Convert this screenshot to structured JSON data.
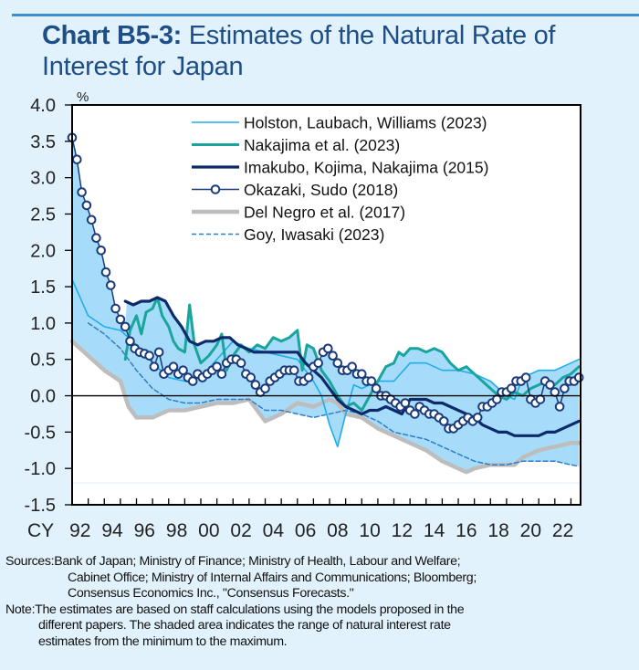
{
  "header": {
    "title_bold": "Chart B5-3:",
    "title_rest": " Estimates of the Natural Rate of Interest for Japan"
  },
  "footer": {
    "sources_label": "Sources: ",
    "sources_line1": "Bank of Japan; Ministry of Finance; Ministry of Health, Labour and Welfare;",
    "sources_line2": "Cabinet Office; Ministry of Internal Affairs and Communications; Bloomberg;",
    "sources_line3": "Consensus Economics Inc., \"Consensus Forecasts.\"",
    "note_label": "Note: ",
    "note_line1": "The estimates are based on staff calculations using the models proposed in the",
    "note_line2": "different papers. The shaded area indicates the range of natural interest rate",
    "note_line3": "estimates from the minimum to the maximum."
  },
  "colors": {
    "hlw": "#20aee8",
    "nakajima": "#1aa59c",
    "imakubo": "#0e2a6b",
    "okazaki": "#1b3a7a",
    "delnegro": "#bdbdbd",
    "goy": "#2f7cc7",
    "band": "#a6dcfa",
    "title": "#1f4e86"
  },
  "chart_data": {
    "type": "line",
    "title": "Chart B5-3: Estimates of the Natural Rate of Interest for Japan",
    "ylabel": "%",
    "xlabel": "",
    "x_prefix": "CY",
    "xlim": [
      1992,
      2023.6
    ],
    "ylim": [
      -1.5,
      4.0
    ],
    "yticks": [
      4.0,
      3.5,
      3.0,
      2.5,
      2.0,
      1.5,
      1.0,
      0.5,
      0.0,
      -0.5,
      -1.0,
      -1.5
    ],
    "ytick_labels": [
      "4.0",
      "3.5",
      "3.0",
      "2.5",
      "2.0",
      "1.5",
      "1.0",
      "0.5",
      "0.0",
      "-0.5",
      "-1.0",
      "-1.5"
    ],
    "xticks": [
      1992,
      1994,
      1996,
      1998,
      2000,
      2002,
      2004,
      2006,
      2008,
      2010,
      2012,
      2014,
      2016,
      2018,
      2020,
      2022
    ],
    "xtick_labels": [
      "92",
      "94",
      "96",
      "98",
      "00",
      "02",
      "04",
      "06",
      "08",
      "10",
      "12",
      "14",
      "16",
      "18",
      "20",
      "22"
    ],
    "legend_position": "top-right",
    "shaded_band": "range of estimates from minimum to maximum",
    "series": [
      {
        "name": "Holston, Laubach, Williams (2023)",
        "key": "hlw",
        "style": "thin",
        "x": [
          1992,
          1993,
          1994,
          1995,
          1996,
          1997,
          1998,
          1999,
          2000,
          2001,
          2002,
          2003,
          2004,
          2005,
          2006,
          2007,
          2007.5,
          2008,
          2008.5,
          2009,
          2009.5,
          2010,
          2010.5,
          2011,
          2012,
          2013,
          2014,
          2015,
          2016,
          2017,
          2018,
          2018.5,
          2019,
          2019.5,
          2020,
          2021,
          2022,
          2023,
          2023.5
        ],
        "y": [
          1.6,
          1.1,
          0.95,
          0.9,
          0.7,
          0.45,
          0.25,
          0.2,
          0.25,
          0.5,
          0.75,
          0.65,
          0.6,
          0.55,
          0.5,
          0.2,
          0.0,
          -0.4,
          -0.7,
          -0.25,
          0.15,
          0.1,
          0.15,
          0.2,
          0.2,
          0.45,
          0.45,
          0.35,
          0.35,
          0.3,
          0.2,
          0.1,
          0.0,
          -0.05,
          0.25,
          0.35,
          0.35,
          0.45,
          0.5
        ]
      },
      {
        "name": "Nakajima et al. (2023)",
        "key": "nakajima",
        "style": "thick-teal",
        "x": [
          1995.3,
          1995.6,
          1996,
          1996.3,
          1996.6,
          1997,
          1997.3,
          1997.6,
          1998,
          1998.3,
          1998.6,
          1999,
          1999.3,
          1999.6,
          2000,
          2000.5,
          2001,
          2001.3,
          2001.6,
          2002,
          2002.5,
          2003,
          2003.5,
          2004,
          2004.5,
          2005,
          2005.5,
          2006,
          2006.3,
          2006.6,
          2007,
          2007.5,
          2008,
          2008.5,
          2009,
          2009.5,
          2010,
          2010.5,
          2011,
          2011.5,
          2012,
          2012.3,
          2012.6,
          2013,
          2013.5,
          2014,
          2014.5,
          2015,
          2015.5,
          2016,
          2016.5,
          2017,
          2017.5,
          2018,
          2018.5,
          2019,
          2019.5,
          2020,
          2020.5,
          2021,
          2021.5,
          2022,
          2022.5,
          2023,
          2023.5
        ],
        "y": [
          0.5,
          0.9,
          1.1,
          0.85,
          1.15,
          1.2,
          1.35,
          1.1,
          0.95,
          0.75,
          0.65,
          0.6,
          1.25,
          0.7,
          0.45,
          0.55,
          0.7,
          0.85,
          0.35,
          0.55,
          0.7,
          0.6,
          0.7,
          0.65,
          0.8,
          0.75,
          0.8,
          0.9,
          0.35,
          0.7,
          0.65,
          0.35,
          0.2,
          0.0,
          -0.15,
          -0.1,
          -0.2,
          0.0,
          0.2,
          0.4,
          0.45,
          0.6,
          0.55,
          0.65,
          0.65,
          0.6,
          0.65,
          0.6,
          0.45,
          0.35,
          0.4,
          0.3,
          0.2,
          0.1,
          0.0,
          -0.05,
          0.05,
          0.0,
          0.1,
          0.15,
          0.2,
          0.15,
          0.25,
          0.3,
          0.4
        ]
      },
      {
        "name": "Imakubo, Kojima, Nakajima (2015)",
        "key": "imakubo",
        "style": "thick-navy",
        "x": [
          1995.3,
          1995.8,
          1996.3,
          1996.8,
          1997.3,
          1997.8,
          1998.3,
          1998.8,
          1999.3,
          1999.8,
          2000.3,
          2000.8,
          2001.3,
          2001.8,
          2002.3,
          2002.8,
          2003.3,
          2004,
          2005,
          2006,
          2006.5,
          2007,
          2007.5,
          2008,
          2008.5,
          2009,
          2009.5,
          2010,
          2010.5,
          2011,
          2011.5,
          2012,
          2012.5,
          2013,
          2013.5,
          2014,
          2014.5,
          2015,
          2015.5,
          2016,
          2016.5,
          2017,
          2017.5,
          2018,
          2018.5,
          2019,
          2019.5,
          2020,
          2020.5,
          2021,
          2021.5,
          2022,
          2022.5,
          2023,
          2023.5
        ],
        "y": [
          1.3,
          1.25,
          1.3,
          1.3,
          1.35,
          1.3,
          1.1,
          0.95,
          0.75,
          0.7,
          0.75,
          0.75,
          0.8,
          0.8,
          0.7,
          0.65,
          0.6,
          0.6,
          0.6,
          0.6,
          0.45,
          0.35,
          0.25,
          0.1,
          -0.05,
          -0.15,
          -0.2,
          -0.25,
          -0.2,
          -0.2,
          -0.15,
          -0.2,
          -0.25,
          -0.05,
          -0.05,
          -0.05,
          -0.1,
          -0.1,
          -0.15,
          -0.2,
          -0.25,
          -0.3,
          -0.4,
          -0.45,
          -0.5,
          -0.5,
          -0.55,
          -0.55,
          -0.55,
          -0.55,
          -0.5,
          -0.5,
          -0.45,
          -0.4,
          -0.35
        ]
      },
      {
        "name": "Okazaki, Sudo (2018)",
        "key": "okazaki",
        "style": "line-markers",
        "x": [
          1992,
          1992.3,
          1992.6,
          1992.9,
          1993.2,
          1993.5,
          1993.8,
          1994.1,
          1994.4,
          1994.7,
          1995,
          1995.3,
          1995.6,
          1995.9,
          1996.2,
          1996.5,
          1996.8,
          1997.1,
          1997.4,
          1997.7,
          1998,
          1998.3,
          1998.6,
          1998.9,
          1999.2,
          1999.5,
          1999.8,
          2000.1,
          2000.4,
          2000.7,
          2001,
          2001.3,
          2001.6,
          2001.9,
          2002.2,
          2002.5,
          2002.8,
          2003.1,
          2003.4,
          2003.7,
          2004,
          2004.3,
          2004.6,
          2004.9,
          2005.2,
          2005.5,
          2005.8,
          2006.1,
          2006.4,
          2006.7,
          2007,
          2007.3,
          2007.6,
          2007.9,
          2008.2,
          2008.5,
          2008.8,
          2009.1,
          2009.4,
          2009.7,
          2010,
          2010.3,
          2010.6,
          2010.9,
          2011.2,
          2011.5,
          2011.8,
          2012.1,
          2012.4,
          2012.7,
          2013,
          2013.3,
          2013.6,
          2013.9,
          2014.2,
          2014.5,
          2014.8,
          2015.1,
          2015.4,
          2015.7,
          2016,
          2016.3,
          2016.6,
          2016.9,
          2017.2,
          2017.5,
          2017.8,
          2018.1,
          2018.4,
          2018.7,
          2019,
          2019.3,
          2019.6,
          2019.9,
          2020.2,
          2020.5,
          2020.8,
          2021.1,
          2021.4,
          2021.7,
          2022,
          2022.3,
          2022.6,
          2022.9,
          2023.2,
          2023.5
        ],
        "y": [
          3.55,
          3.25,
          2.8,
          2.62,
          2.42,
          2.17,
          2.0,
          1.7,
          1.52,
          1.2,
          1.05,
          0.95,
          0.75,
          0.65,
          0.6,
          0.58,
          0.55,
          0.4,
          0.6,
          0.3,
          0.35,
          0.4,
          0.3,
          0.35,
          0.25,
          0.2,
          0.3,
          0.25,
          0.3,
          0.35,
          0.4,
          0.3,
          0.45,
          0.5,
          0.5,
          0.45,
          0.3,
          0.25,
          0.15,
          0.05,
          0.1,
          0.2,
          0.25,
          0.3,
          0.35,
          0.35,
          0.35,
          0.2,
          0.2,
          0.25,
          0.4,
          0.45,
          0.6,
          0.65,
          0.55,
          0.45,
          0.35,
          0.35,
          0.4,
          0.3,
          0.3,
          0.2,
          0.2,
          0.1,
          0.0,
          0.0,
          -0.05,
          -0.1,
          -0.15,
          -0.1,
          -0.2,
          -0.25,
          -0.15,
          -0.2,
          -0.25,
          -0.25,
          -0.3,
          -0.35,
          -0.45,
          -0.45,
          -0.4,
          -0.35,
          -0.3,
          -0.35,
          -0.3,
          -0.15,
          -0.15,
          -0.1,
          -0.05,
          0.05,
          0.05,
          0.1,
          0.2,
          0.2,
          0.25,
          -0.05,
          -0.1,
          -0.05,
          0.2,
          0.15,
          0.05,
          -0.15,
          0.1,
          0.2,
          0.2,
          0.25
        ]
      },
      {
        "name": "Del Negro et al. (2017)",
        "key": "delnegro",
        "style": "thick-gray",
        "x": [
          1992,
          1993,
          1994,
          1995,
          1995.5,
          1996,
          1997,
          1998,
          1999,
          2000,
          2001,
          2002,
          2003,
          2004,
          2005,
          2006,
          2007,
          2008,
          2008.5,
          2009,
          2010,
          2011,
          2012,
          2013,
          2014,
          2015,
          2016,
          2016.5,
          2017,
          2018,
          2019,
          2019.5,
          2020,
          2021,
          2022,
          2023,
          2023.5
        ],
        "y": [
          0.75,
          0.55,
          0.35,
          0.2,
          -0.15,
          -0.3,
          -0.3,
          -0.2,
          -0.2,
          -0.15,
          -0.1,
          -0.1,
          -0.05,
          -0.35,
          -0.25,
          -0.1,
          -0.15,
          -0.05,
          -0.1,
          -0.25,
          -0.3,
          -0.45,
          -0.55,
          -0.65,
          -0.75,
          -0.9,
          -1.0,
          -1.05,
          -1.0,
          -0.95,
          -0.95,
          -0.95,
          -0.85,
          -0.75,
          -0.7,
          -0.65,
          -0.65
        ]
      },
      {
        "name": "Goy, Iwasaki (2023)",
        "key": "goy",
        "style": "dashed",
        "x": [
          1993,
          1994,
          1995,
          1996,
          1997,
          1998,
          1999,
          2000,
          2001,
          2002,
          2003,
          2004,
          2005,
          2006,
          2007,
          2008,
          2009,
          2010,
          2011,
          2012,
          2013,
          2014,
          2015,
          2016,
          2017,
          2018,
          2019,
          2020,
          2021,
          2022,
          2023,
          2023.5
        ],
        "y": [
          1.0,
          0.85,
          0.65,
          0.35,
          0.1,
          -0.05,
          -0.1,
          -0.1,
          -0.05,
          -0.05,
          -0.05,
          -0.2,
          -0.2,
          -0.25,
          -0.3,
          -0.25,
          -0.2,
          -0.25,
          -0.35,
          -0.5,
          -0.55,
          -0.6,
          -0.7,
          -0.8,
          -0.9,
          -0.95,
          -0.95,
          -0.9,
          -0.9,
          -0.9,
          -0.95,
          -0.97
        ]
      }
    ]
  }
}
